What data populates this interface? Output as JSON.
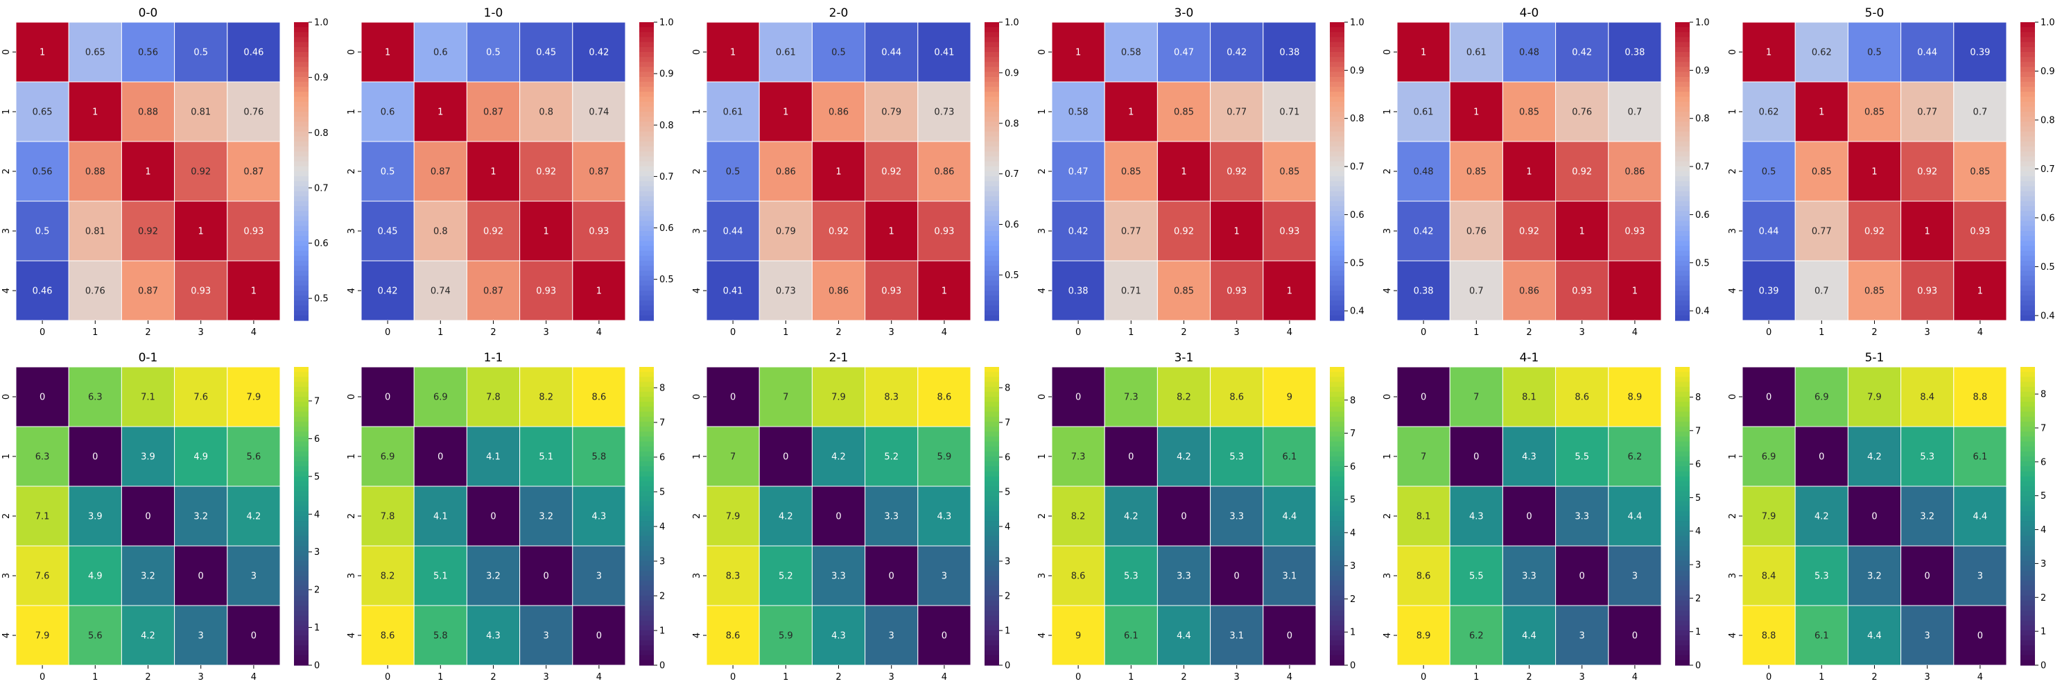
{
  "chart_data": [
    {
      "type": "heatmap",
      "title": "0-0",
      "x_ticks": [
        "0",
        "1",
        "2",
        "3",
        "4"
      ],
      "y_ticks": [
        "0",
        "1",
        "2",
        "3",
        "4"
      ],
      "values": [
        [
          1,
          0.65,
          0.56,
          0.5,
          0.46
        ],
        [
          0.65,
          1,
          0.88,
          0.81,
          0.76
        ],
        [
          0.56,
          0.88,
          1,
          0.92,
          0.87
        ],
        [
          0.5,
          0.81,
          0.92,
          1,
          0.93
        ],
        [
          0.46,
          0.76,
          0.87,
          0.93,
          1
        ]
      ],
      "colormap": "coolwarm",
      "vmin": 0.46,
      "vmax": 1.0,
      "colorbar_ticks": [
        "0.5",
        "0.6",
        "0.7",
        "0.8",
        "0.9",
        "1.0"
      ]
    },
    {
      "type": "heatmap",
      "title": "1-0",
      "x_ticks": [
        "0",
        "1",
        "2",
        "3",
        "4"
      ],
      "y_ticks": [
        "0",
        "1",
        "2",
        "3",
        "4"
      ],
      "values": [
        [
          1,
          0.6,
          0.5,
          0.45,
          0.42
        ],
        [
          0.6,
          1,
          0.87,
          0.8,
          0.74
        ],
        [
          0.5,
          0.87,
          1,
          0.92,
          0.87
        ],
        [
          0.45,
          0.8,
          0.92,
          1,
          0.93
        ],
        [
          0.42,
          0.74,
          0.87,
          0.93,
          1
        ]
      ],
      "colormap": "coolwarm",
      "vmin": 0.42,
      "vmax": 1.0,
      "colorbar_ticks": [
        "0.5",
        "0.6",
        "0.7",
        "0.8",
        "0.9",
        "1.0"
      ]
    },
    {
      "type": "heatmap",
      "title": "2-0",
      "x_ticks": [
        "0",
        "1",
        "2",
        "3",
        "4"
      ],
      "y_ticks": [
        "0",
        "1",
        "2",
        "3",
        "4"
      ],
      "values": [
        [
          1,
          0.61,
          0.5,
          0.44,
          0.41
        ],
        [
          0.61,
          1,
          0.86,
          0.79,
          0.73
        ],
        [
          0.5,
          0.86,
          1,
          0.92,
          0.86
        ],
        [
          0.44,
          0.79,
          0.92,
          1,
          0.93
        ],
        [
          0.41,
          0.73,
          0.86,
          0.93,
          1
        ]
      ],
      "colormap": "coolwarm",
      "vmin": 0.41,
      "vmax": 1.0,
      "colorbar_ticks": [
        "0.5",
        "0.6",
        "0.7",
        "0.8",
        "0.9",
        "1.0"
      ]
    },
    {
      "type": "heatmap",
      "title": "3-0",
      "x_ticks": [
        "0",
        "1",
        "2",
        "3",
        "4"
      ],
      "y_ticks": [
        "0",
        "1",
        "2",
        "3",
        "4"
      ],
      "values": [
        [
          1,
          0.58,
          0.47,
          0.42,
          0.38
        ],
        [
          0.58,
          1,
          0.85,
          0.77,
          0.71
        ],
        [
          0.47,
          0.85,
          1,
          0.92,
          0.85
        ],
        [
          0.42,
          0.77,
          0.92,
          1,
          0.93
        ],
        [
          0.38,
          0.71,
          0.85,
          0.93,
          1
        ]
      ],
      "colormap": "coolwarm",
      "vmin": 0.38,
      "vmax": 1.0,
      "colorbar_ticks": [
        "0.4",
        "0.5",
        "0.6",
        "0.7",
        "0.8",
        "0.9",
        "1.0"
      ]
    },
    {
      "type": "heatmap",
      "title": "4-0",
      "x_ticks": [
        "0",
        "1",
        "2",
        "3",
        "4"
      ],
      "y_ticks": [
        "0",
        "1",
        "2",
        "3",
        "4"
      ],
      "values": [
        [
          1,
          0.61,
          0.48,
          0.42,
          0.38
        ],
        [
          0.61,
          1,
          0.85,
          0.76,
          0.7
        ],
        [
          0.48,
          0.85,
          1,
          0.92,
          0.86
        ],
        [
          0.42,
          0.76,
          0.92,
          1,
          0.93
        ],
        [
          0.38,
          0.7,
          0.86,
          0.93,
          1
        ]
      ],
      "colormap": "coolwarm",
      "vmin": 0.38,
      "vmax": 1.0,
      "colorbar_ticks": [
        "0.4",
        "0.5",
        "0.6",
        "0.7",
        "0.8",
        "0.9",
        "1.0"
      ]
    },
    {
      "type": "heatmap",
      "title": "5-0",
      "x_ticks": [
        "0",
        "1",
        "2",
        "3",
        "4"
      ],
      "y_ticks": [
        "0",
        "1",
        "2",
        "3",
        "4"
      ],
      "values": [
        [
          1,
          0.62,
          0.5,
          0.44,
          0.39
        ],
        [
          0.62,
          1,
          0.85,
          0.77,
          0.7
        ],
        [
          0.5,
          0.85,
          1,
          0.92,
          0.85
        ],
        [
          0.44,
          0.77,
          0.92,
          1,
          0.93
        ],
        [
          0.39,
          0.7,
          0.85,
          0.93,
          1
        ]
      ],
      "colormap": "coolwarm",
      "vmin": 0.39,
      "vmax": 1.0,
      "colorbar_ticks": [
        "0.4",
        "0.5",
        "0.6",
        "0.7",
        "0.8",
        "0.9",
        "1.0"
      ]
    },
    {
      "type": "heatmap",
      "title": "0-1",
      "x_ticks": [
        "0",
        "1",
        "2",
        "3",
        "4"
      ],
      "y_ticks": [
        "0",
        "1",
        "2",
        "3",
        "4"
      ],
      "values": [
        [
          0,
          6.3,
          7.1,
          7.6,
          7.9
        ],
        [
          6.3,
          0,
          3.9,
          4.9,
          5.6
        ],
        [
          7.1,
          3.9,
          0,
          3.2,
          4.2
        ],
        [
          7.6,
          4.9,
          3.2,
          0,
          3
        ],
        [
          7.9,
          5.6,
          4.2,
          3,
          0
        ]
      ],
      "colormap": "viridis",
      "vmin": 0,
      "vmax": 7.9,
      "colorbar_ticks": [
        "0",
        "1",
        "2",
        "3",
        "4",
        "5",
        "6",
        "7"
      ]
    },
    {
      "type": "heatmap",
      "title": "1-1",
      "x_ticks": [
        "0",
        "1",
        "2",
        "3",
        "4"
      ],
      "y_ticks": [
        "0",
        "1",
        "2",
        "3",
        "4"
      ],
      "values": [
        [
          0,
          6.9,
          7.8,
          8.2,
          8.6
        ],
        [
          6.9,
          0,
          4.1,
          5.1,
          5.8
        ],
        [
          7.8,
          4.1,
          0,
          3.2,
          4.3
        ],
        [
          8.2,
          5.1,
          3.2,
          0,
          3
        ],
        [
          8.6,
          5.8,
          4.3,
          3,
          0
        ]
      ],
      "colormap": "viridis",
      "vmin": 0,
      "vmax": 8.6,
      "colorbar_ticks": [
        "0",
        "1",
        "2",
        "3",
        "4",
        "5",
        "6",
        "7",
        "8"
      ]
    },
    {
      "type": "heatmap",
      "title": "2-1",
      "x_ticks": [
        "0",
        "1",
        "2",
        "3",
        "4"
      ],
      "y_ticks": [
        "0",
        "1",
        "2",
        "3",
        "4"
      ],
      "values": [
        [
          0,
          7,
          7.9,
          8.3,
          8.6
        ],
        [
          7,
          0,
          4.2,
          5.2,
          5.9
        ],
        [
          7.9,
          4.2,
          0,
          3.3,
          4.3
        ],
        [
          8.3,
          5.2,
          3.3,
          0,
          3
        ],
        [
          8.6,
          5.9,
          4.3,
          3,
          0
        ]
      ],
      "colormap": "viridis",
      "vmin": 0,
      "vmax": 8.6,
      "colorbar_ticks": [
        "0",
        "1",
        "2",
        "3",
        "4",
        "5",
        "6",
        "7",
        "8"
      ]
    },
    {
      "type": "heatmap",
      "title": "3-1",
      "x_ticks": [
        "0",
        "1",
        "2",
        "3",
        "4"
      ],
      "y_ticks": [
        "0",
        "1",
        "2",
        "3",
        "4"
      ],
      "values": [
        [
          0,
          7.3,
          8.2,
          8.6,
          9
        ],
        [
          7.3,
          0,
          4.2,
          5.3,
          6.1
        ],
        [
          8.2,
          4.2,
          0,
          3.3,
          4.4
        ],
        [
          8.6,
          5.3,
          3.3,
          0,
          3.1
        ],
        [
          9,
          6.1,
          4.4,
          3.1,
          0
        ]
      ],
      "colormap": "viridis",
      "vmin": 0,
      "vmax": 9.0,
      "colorbar_ticks": [
        "0",
        "1",
        "2",
        "3",
        "4",
        "5",
        "6",
        "7",
        "8"
      ]
    },
    {
      "type": "heatmap",
      "title": "4-1",
      "x_ticks": [
        "0",
        "1",
        "2",
        "3",
        "4"
      ],
      "y_ticks": [
        "0",
        "1",
        "2",
        "3",
        "4"
      ],
      "values": [
        [
          0,
          7,
          8.1,
          8.6,
          8.9
        ],
        [
          7,
          0,
          4.3,
          5.5,
          6.2
        ],
        [
          8.1,
          4.3,
          0,
          3.3,
          4.4
        ],
        [
          8.6,
          5.5,
          3.3,
          0,
          3
        ],
        [
          8.9,
          6.2,
          4.4,
          3,
          0
        ]
      ],
      "colormap": "viridis",
      "vmin": 0,
      "vmax": 8.9,
      "colorbar_ticks": [
        "0",
        "1",
        "2",
        "3",
        "4",
        "5",
        "6",
        "7",
        "8"
      ]
    },
    {
      "type": "heatmap",
      "title": "5-1",
      "x_ticks": [
        "0",
        "1",
        "2",
        "3",
        "4"
      ],
      "y_ticks": [
        "0",
        "1",
        "2",
        "3",
        "4"
      ],
      "values": [
        [
          0,
          6.9,
          7.9,
          8.4,
          8.8
        ],
        [
          6.9,
          0,
          4.2,
          5.3,
          6.1
        ],
        [
          7.9,
          4.2,
          0,
          3.2,
          4.4
        ],
        [
          8.4,
          5.3,
          3.2,
          0,
          3
        ],
        [
          8.8,
          6.1,
          4.4,
          3,
          0
        ]
      ],
      "colormap": "viridis",
      "vmin": 0,
      "vmax": 8.8,
      "colorbar_ticks": [
        "0",
        "1",
        "2",
        "3",
        "4",
        "5",
        "6",
        "7",
        "8"
      ]
    }
  ]
}
